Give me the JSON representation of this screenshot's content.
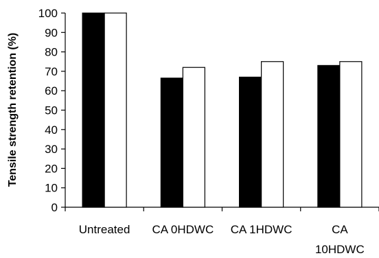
{
  "chart_data": {
    "type": "bar",
    "categories": [
      "Untreated",
      "CA 0HDWC",
      "CA 1HDWC",
      "CA 10HDWC"
    ],
    "category_label_lines": [
      [
        "Untreated"
      ],
      [
        "CA 0HDWC"
      ],
      [
        "CA 1HDWC"
      ],
      [
        "CA",
        "10HDWC"
      ]
    ],
    "series": [
      {
        "values": [
          100,
          66.5,
          67,
          73
        ],
        "color": "#000000"
      },
      {
        "values": [
          100,
          72,
          75,
          75
        ],
        "color": "#ffffff"
      }
    ],
    "ylabel": "Tensile strength retention  (%)",
    "xlabel": "",
    "ylim": [
      0,
      100
    ],
    "yticks": [
      0,
      10,
      20,
      30,
      40,
      50,
      60,
      70,
      80,
      90,
      100
    ],
    "grid": false,
    "legend": "none"
  }
}
